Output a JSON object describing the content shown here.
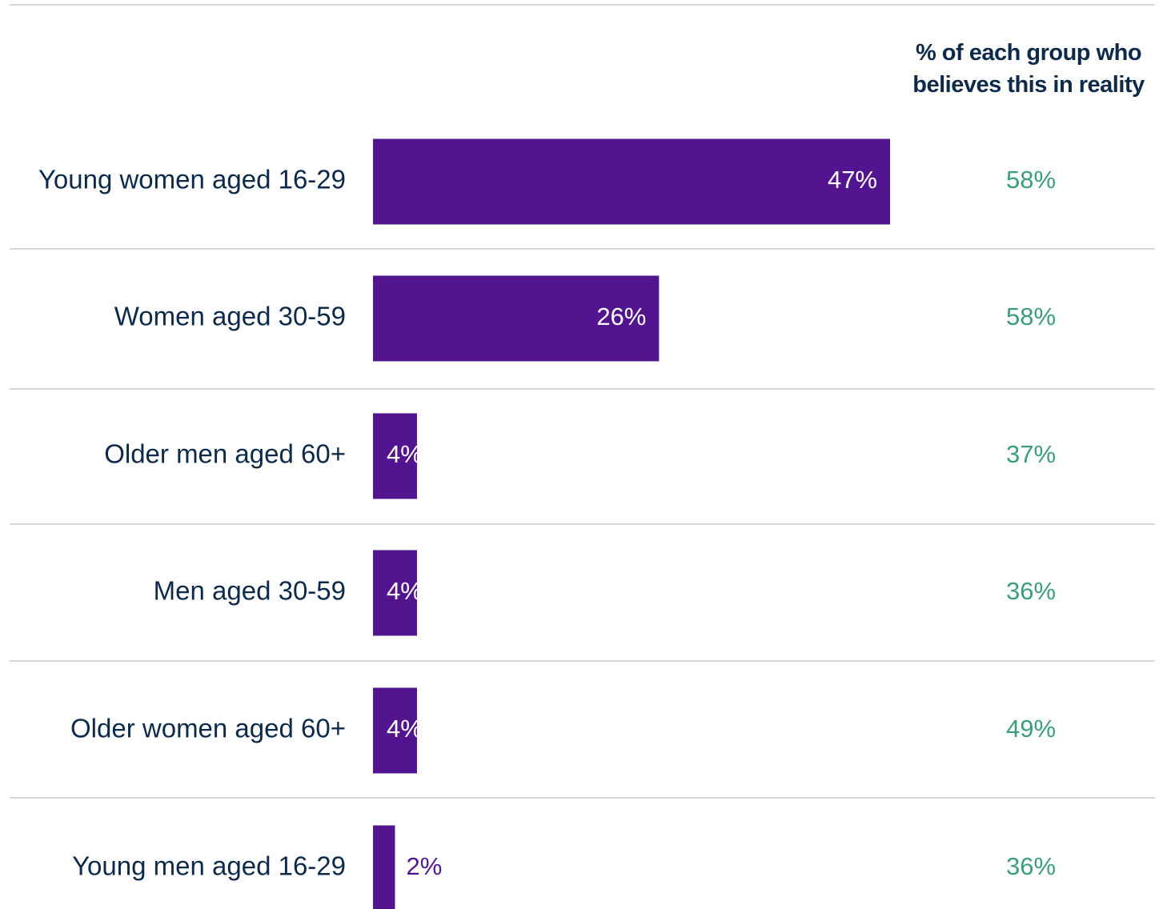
{
  "chart_data": {
    "type": "bar",
    "orientation": "horizontal",
    "categories": [
      "Young women aged 16-29",
      "Women aged 30-59",
      "Older men aged 60+",
      "Men aged 30-59",
      "Older women aged 60+",
      "Young men aged 16-29"
    ],
    "values": [
      47,
      26,
      4,
      4,
      4,
      2
    ],
    "value_labels": [
      "47%",
      "26%",
      "4%",
      "4%",
      "4%",
      "2%"
    ],
    "color": "#52158f",
    "side_column": {
      "title": "% of each group who believes this in reality",
      "values": [
        58,
        58,
        37,
        36,
        49,
        36
      ],
      "value_labels": [
        "58%",
        "58%",
        "37%",
        "36%",
        "49%",
        "36%"
      ],
      "color": "#3a9e7a"
    }
  }
}
